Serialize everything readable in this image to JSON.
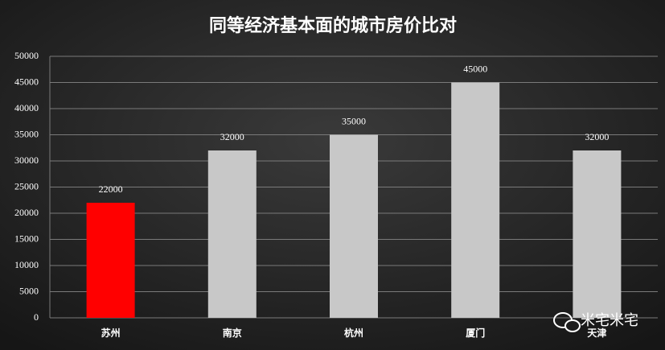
{
  "chart_data": {
    "type": "bar",
    "title": "同等经济基本面的城市房价比对",
    "categories": [
      "苏州",
      "南京",
      "杭州",
      "厦门",
      "天津"
    ],
    "values": [
      22000,
      32000,
      35000,
      45000,
      32000
    ],
    "colors": [
      "#ff0000",
      "#c8c8c8",
      "#c8c8c8",
      "#c8c8c8",
      "#c8c8c8"
    ],
    "ylim": [
      0,
      50000
    ],
    "yticks": [
      0,
      5000,
      10000,
      15000,
      20000,
      25000,
      30000,
      35000,
      40000,
      45000,
      50000
    ],
    "grid": true,
    "watermark": "米宅米宅"
  }
}
